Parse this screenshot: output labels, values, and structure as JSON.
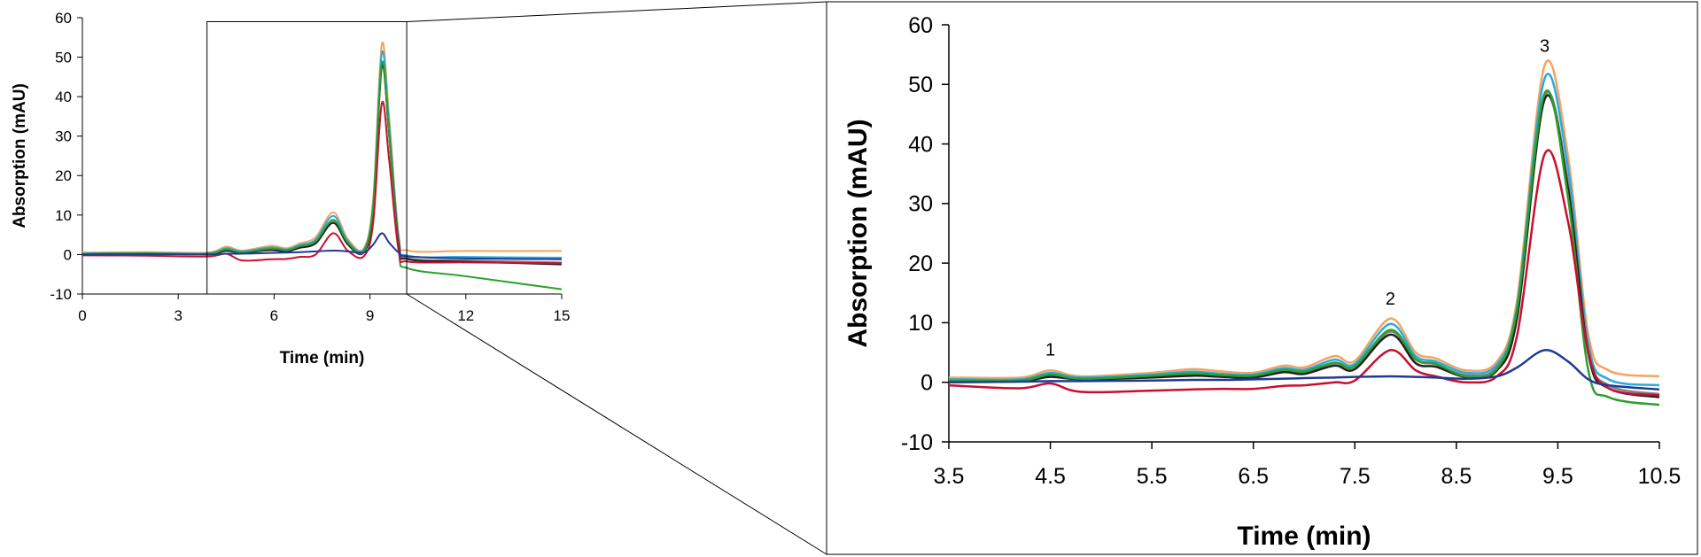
{
  "chart_data": [
    {
      "type": "line",
      "panel": "overview",
      "xlabel": "Time (min)",
      "ylabel": "Absorption (mAU)",
      "xlim": [
        0,
        15
      ],
      "ylim": [
        -10,
        60
      ],
      "xticks": [
        0,
        3,
        6,
        9,
        12,
        15
      ],
      "yticks": [
        -10,
        0,
        10,
        20,
        30,
        40,
        50,
        60
      ],
      "zoom_box_x": [
        3.9,
        10.15
      ],
      "zoom_box_y": [
        -10,
        59
      ],
      "series": [
        {
          "color": "#f4a460",
          "x": [
            0,
            2,
            3.9,
            4.5,
            5,
            5.9,
            6.4,
            6.8,
            7.3,
            7.85,
            8.3,
            8.8,
            9.1,
            9.37,
            9.6,
            9.9,
            10.2,
            12,
            15
          ],
          "y": [
            0.5,
            0.6,
            0.5,
            2.0,
            1.0,
            2.2,
            1.6,
            2.8,
            4.4,
            10.7,
            4.0,
            1.5,
            14.0,
            53.2,
            35.0,
            5.0,
            1.0,
            0.9,
            0.9
          ]
        },
        {
          "color": "#29abe2",
          "x": [
            0,
            2,
            3.9,
            4.5,
            5,
            5.9,
            6.4,
            6.8,
            7.3,
            7.85,
            8.3,
            8.8,
            9.1,
            9.37,
            9.6,
            9.9,
            10.2,
            12,
            15
          ],
          "y": [
            0.3,
            0.4,
            0.3,
            1.6,
            0.8,
            1.8,
            1.3,
            2.4,
            3.8,
            9.8,
            3.5,
            1.2,
            13.0,
            51.0,
            33.0,
            4.0,
            -0.3,
            -0.6,
            -0.8
          ]
        },
        {
          "color": "#808080",
          "x": [
            0,
            2,
            3.9,
            4.5,
            5,
            5.9,
            6.4,
            6.8,
            7.3,
            7.85,
            8.3,
            8.8,
            9.1,
            9.37,
            9.6,
            9.9,
            10.2,
            12,
            15
          ],
          "y": [
            0.2,
            0.3,
            0.2,
            1.2,
            0.6,
            1.4,
            1.0,
            2.0,
            3.2,
            8.5,
            3.0,
            0.8,
            12.0,
            48.0,
            31.0,
            3.2,
            -0.9,
            -1.5,
            -2.0
          ]
        },
        {
          "color": "#222222",
          "x": [
            0,
            2,
            3.9,
            4.5,
            5,
            5.9,
            6.4,
            6.8,
            7.3,
            7.85,
            8.3,
            8.8,
            9.1,
            9.37,
            9.6,
            9.9,
            10.2,
            12,
            15
          ],
          "y": [
            0.1,
            0.2,
            0.1,
            0.9,
            0.5,
            1.1,
            0.8,
            1.7,
            2.8,
            8.0,
            2.6,
            0.5,
            11.0,
            47.5,
            30.0,
            2.5,
            -1.2,
            -1.8,
            -2.5
          ]
        },
        {
          "color": "#2ca02c",
          "x": [
            0,
            2,
            3.9,
            4.5,
            5,
            5.9,
            6.4,
            6.8,
            7.3,
            7.85,
            8.3,
            8.8,
            9.1,
            9.37,
            9.6,
            9.9,
            10.2,
            12,
            15
          ],
          "y": [
            0.2,
            0.3,
            0.2,
            1.3,
            0.6,
            1.5,
            1.1,
            2.1,
            3.3,
            8.8,
            3.1,
            0.7,
            12.5,
            48.5,
            30.0,
            1.0,
            -3.5,
            -5.5,
            -8.8
          ]
        },
        {
          "color": "#c8102e",
          "x": [
            0,
            2,
            3.9,
            4.5,
            5,
            5.9,
            6.4,
            6.8,
            7.3,
            7.85,
            8.3,
            8.8,
            9.1,
            9.37,
            9.6,
            9.9,
            10.2,
            12,
            15
          ],
          "y": [
            -0.2,
            -0.3,
            -0.5,
            0.2,
            -1.5,
            -1.2,
            -1.1,
            -0.6,
            0.0,
            5.4,
            1.0,
            -0.5,
            8.0,
            38.3,
            24.0,
            0.8,
            -1.8,
            -2.0,
            -2.2
          ]
        },
        {
          "color": "#1f3a93",
          "x": [
            0,
            2,
            3.9,
            4.5,
            5,
            5.9,
            6.4,
            6.8,
            7.3,
            7.85,
            8.3,
            8.8,
            9.1,
            9.37,
            9.6,
            9.9,
            10.2,
            12,
            15
          ],
          "y": [
            0.0,
            0.1,
            0.0,
            0.2,
            0.2,
            0.4,
            0.5,
            0.6,
            0.8,
            1.0,
            0.8,
            0.5,
            2.5,
            5.4,
            3.0,
            0.5,
            -0.5,
            -1.0,
            -1.2
          ]
        }
      ]
    },
    {
      "type": "line",
      "panel": "zoom",
      "xlabel": "Time (min)",
      "ylabel": "Absorption (mAU)",
      "xlim": [
        3.5,
        10.5
      ],
      "ylim": [
        -10,
        60
      ],
      "xticks": [
        3.5,
        4.5,
        5.5,
        6.5,
        7.5,
        8.5,
        9.5,
        10.5
      ],
      "yticks": [
        -10,
        0,
        10,
        20,
        30,
        40,
        50,
        60
      ],
      "annotations": [
        {
          "text": "1",
          "x": 4.5,
          "y": 4.5
        },
        {
          "text": "2",
          "x": 7.85,
          "y": 13.0
        },
        {
          "text": "3",
          "x": 9.37,
          "y": 55.5
        }
      ],
      "series": [
        {
          "color": "#f4a460",
          "x": [
            3.5,
            4.2,
            4.5,
            4.8,
            5.5,
            5.9,
            6.2,
            6.5,
            6.8,
            7.0,
            7.3,
            7.5,
            7.85,
            8.1,
            8.3,
            8.6,
            8.9,
            9.1,
            9.37,
            9.6,
            9.8,
            10.0,
            10.5
          ],
          "y": [
            0.8,
            0.8,
            2.0,
            1.0,
            1.6,
            2.2,
            1.8,
            1.6,
            2.8,
            2.5,
            4.4,
            3.6,
            10.7,
            5.0,
            4.0,
            2.0,
            3.5,
            14.0,
            53.2,
            38.0,
            8.0,
            2.0,
            1.0
          ]
        },
        {
          "color": "#29abe2",
          "x": [
            3.5,
            4.2,
            4.5,
            4.8,
            5.5,
            5.9,
            6.2,
            6.5,
            6.8,
            7.0,
            7.3,
            7.5,
            7.85,
            8.1,
            8.3,
            8.6,
            8.9,
            9.1,
            9.37,
            9.6,
            9.8,
            10.0,
            10.5
          ],
          "y": [
            0.5,
            0.5,
            1.6,
            0.8,
            1.3,
            1.8,
            1.4,
            1.3,
            2.4,
            2.1,
            3.8,
            3.1,
            9.8,
            4.4,
            3.5,
            1.6,
            3.0,
            13.0,
            51.0,
            36.0,
            6.5,
            0.5,
            -0.5
          ]
        },
        {
          "color": "#808080",
          "x": [
            3.5,
            4.2,
            4.5,
            4.8,
            5.5,
            5.9,
            6.2,
            6.5,
            6.8,
            7.0,
            7.3,
            7.5,
            7.85,
            8.1,
            8.3,
            8.6,
            8.9,
            9.1,
            9.37,
            9.6,
            9.8,
            10.0,
            10.5
          ],
          "y": [
            0.3,
            0.3,
            1.2,
            0.6,
            1.0,
            1.4,
            1.1,
            1.0,
            2.0,
            1.7,
            3.2,
            2.6,
            8.5,
            3.8,
            3.0,
            1.2,
            2.5,
            12.0,
            48.0,
            33.5,
            5.5,
            -0.5,
            -2.0
          ]
        },
        {
          "color": "#222222",
          "x": [
            3.5,
            4.2,
            4.5,
            4.8,
            5.5,
            5.9,
            6.2,
            6.5,
            6.8,
            7.0,
            7.3,
            7.5,
            7.85,
            8.1,
            8.3,
            8.6,
            8.9,
            9.1,
            9.37,
            9.6,
            9.8,
            10.0,
            10.5
          ],
          "y": [
            0.2,
            0.2,
            0.9,
            0.5,
            0.8,
            1.1,
            0.9,
            0.8,
            1.7,
            1.4,
            2.8,
            2.2,
            8.0,
            3.2,
            2.6,
            0.9,
            2.0,
            11.0,
            47.5,
            32.5,
            4.8,
            -1.0,
            -2.5
          ]
        },
        {
          "color": "#2ca02c",
          "x": [
            3.5,
            4.2,
            4.5,
            4.8,
            5.5,
            5.9,
            6.2,
            6.5,
            6.8,
            7.0,
            7.3,
            7.5,
            7.85,
            8.1,
            8.3,
            8.6,
            8.9,
            9.1,
            9.37,
            9.6,
            9.8,
            10.0,
            10.5
          ],
          "y": [
            0.3,
            0.3,
            1.3,
            0.6,
            1.1,
            1.5,
            1.2,
            1.1,
            2.1,
            1.8,
            3.3,
            2.7,
            8.8,
            3.9,
            3.1,
            1.0,
            2.3,
            12.5,
            48.5,
            31.0,
            2.0,
            -2.5,
            -3.8
          ]
        },
        {
          "color": "#c8102e",
          "x": [
            3.5,
            4.2,
            4.5,
            4.8,
            5.5,
            5.9,
            6.2,
            6.5,
            6.8,
            7.0,
            7.3,
            7.5,
            7.85,
            8.1,
            8.3,
            8.6,
            8.9,
            9.1,
            9.37,
            9.6,
            9.8,
            10.0,
            10.5
          ],
          "y": [
            -0.5,
            -1.0,
            -0.2,
            -1.6,
            -1.4,
            -1.2,
            -1.1,
            -1.1,
            -0.6,
            -0.5,
            0.0,
            0.3,
            5.4,
            2.0,
            1.0,
            0.0,
            1.0,
            8.0,
            38.3,
            27.0,
            5.0,
            -1.0,
            -2.2
          ]
        },
        {
          "color": "#1f3a93",
          "x": [
            3.5,
            4.2,
            4.5,
            4.8,
            5.5,
            5.9,
            6.2,
            6.5,
            6.8,
            7.0,
            7.3,
            7.5,
            7.85,
            8.1,
            8.3,
            8.6,
            8.9,
            9.1,
            9.37,
            9.6,
            9.8,
            10.0,
            10.5
          ],
          "y": [
            0.0,
            0.1,
            0.2,
            0.2,
            0.3,
            0.4,
            0.4,
            0.5,
            0.6,
            0.7,
            0.8,
            0.9,
            1.0,
            0.9,
            0.8,
            0.6,
            1.0,
            2.5,
            5.4,
            3.5,
            0.5,
            -0.5,
            -1.2
          ]
        }
      ]
    }
  ]
}
